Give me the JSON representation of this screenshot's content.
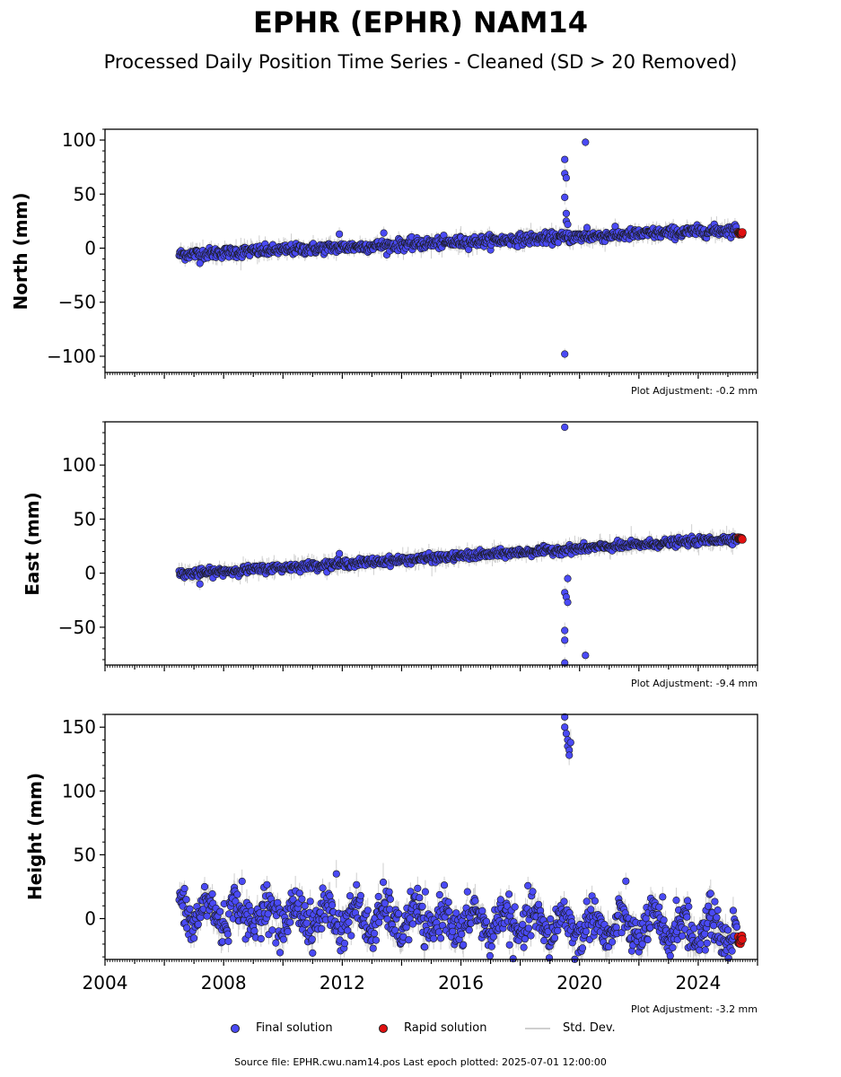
{
  "title": "EPHR (EPHR) NAM14",
  "subtitle": "Processed Daily Position Time Series - Cleaned (SD > 20 Removed)",
  "legend": {
    "final_label": "Final solution",
    "rapid_label": "Rapid solution",
    "std_label": "Std. Dev.",
    "final_color": "#4a4af5",
    "rapid_color": "#e01010",
    "std_color": "#cfcfcf"
  },
  "footer": "Source file: EPHR.cwu.nam14.pos  Last epoch plotted: 2025-07-01 12:00:00",
  "chart_data": [
    {
      "type": "scatter",
      "ylabel": "North (mm)",
      "adjustment": "Plot Adjustment: -0.2 mm",
      "xlim": [
        2004.0,
        2026.0
      ],
      "ylim": [
        -115,
        110
      ],
      "yticks": [
        100,
        50,
        0,
        -50,
        -100
      ],
      "ytick_labels": [
        "100",
        "50",
        "0",
        "−50",
        "−100"
      ],
      "series": [
        {
          "name": "Final solution",
          "trend": {
            "x0": 2006.5,
            "y0": -6,
            "x1": 2025.3,
            "y1": 17
          },
          "noise": 2.5,
          "x_range": [
            2006.5,
            2025.3
          ],
          "outliers": [
            [
              2011.9,
              13
            ],
            [
              2013.4,
              14
            ],
            [
              2019.5,
              82
            ],
            [
              2019.5,
              69
            ],
            [
              2019.55,
              65
            ],
            [
              2019.5,
              47
            ],
            [
              2019.55,
              32
            ],
            [
              2019.55,
              25
            ],
            [
              2019.6,
              22
            ],
            [
              2019.5,
              -98
            ],
            [
              2020.2,
              98
            ],
            [
              2020.25,
              19
            ],
            [
              2007.2,
              -14
            ]
          ]
        },
        {
          "name": "Rapid solution",
          "trend": {
            "x0": 2025.35,
            "y0": 14,
            "x1": 2025.5,
            "y1": 14
          },
          "noise": 0.5,
          "x_range": [
            2025.35,
            2025.5
          ],
          "outliers": []
        }
      ]
    },
    {
      "type": "scatter",
      "ylabel": "East (mm)",
      "adjustment": "Plot Adjustment: -9.4 mm",
      "xlim": [
        2004.0,
        2026.0
      ],
      "ylim": [
        -85,
        140
      ],
      "yticks": [
        100,
        50,
        0,
        -50
      ],
      "ytick_labels": [
        "100",
        "50",
        "0",
        "−50"
      ],
      "series": [
        {
          "name": "Final solution",
          "trend": {
            "x0": 2006.5,
            "y0": -1,
            "x1": 2025.3,
            "y1": 32
          },
          "noise": 1.8,
          "x_range": [
            2006.5,
            2025.3
          ],
          "outliers": [
            [
              2011.9,
              18
            ],
            [
              2007.2,
              -10
            ],
            [
              2019.5,
              135
            ],
            [
              2019.5,
              -18
            ],
            [
              2019.55,
              -22
            ],
            [
              2019.6,
              -27
            ],
            [
              2019.5,
              -53
            ],
            [
              2019.5,
              -62
            ],
            [
              2019.5,
              -83
            ],
            [
              2020.2,
              -76
            ],
            [
              2019.6,
              -5
            ]
          ]
        },
        {
          "name": "Rapid solution",
          "trend": {
            "x0": 2025.35,
            "y0": 32,
            "x1": 2025.5,
            "y1": 32
          },
          "noise": 0.5,
          "x_range": [
            2025.35,
            2025.5
          ],
          "outliers": []
        }
      ]
    },
    {
      "type": "scatter",
      "ylabel": "Height (mm)",
      "adjustment": "Plot Adjustment: -3.2 mm",
      "xlim": [
        2004.0,
        2026.0
      ],
      "ylim": [
        -32,
        160
      ],
      "yticks": [
        150,
        100,
        50,
        0
      ],
      "ytick_labels": [
        "150",
        "100",
        "50",
        "0"
      ],
      "xticks": [
        2004,
        2008,
        2012,
        2016,
        2020,
        2024
      ],
      "xtick_labels": [
        "2004",
        "2008",
        "2012",
        "2016",
        "2020",
        "2024"
      ],
      "series": [
        {
          "name": "Final solution",
          "trend": {
            "x0": 2006.5,
            "y0": 5,
            "x1": 2025.3,
            "y1": -10
          },
          "noise": 8,
          "seasonal": 10,
          "x_range": [
            2006.5,
            2025.3
          ],
          "outliers": [
            [
              2011.8,
              35
            ],
            [
              2019.5,
              158
            ],
            [
              2019.5,
              150
            ],
            [
              2019.55,
              145
            ],
            [
              2019.6,
              140
            ],
            [
              2019.6,
              135
            ],
            [
              2019.65,
              132
            ],
            [
              2019.65,
              128
            ],
            [
              2019.7,
              138
            ],
            [
              2011.0,
              -27
            ],
            [
              2022.8,
              17
            ]
          ]
        },
        {
          "name": "Rapid solution",
          "trend": {
            "x0": 2025.35,
            "y0": -18,
            "x1": 2025.5,
            "y1": -18
          },
          "noise": 3,
          "x_range": [
            2025.35,
            2025.5
          ],
          "outliers": []
        }
      ]
    }
  ]
}
